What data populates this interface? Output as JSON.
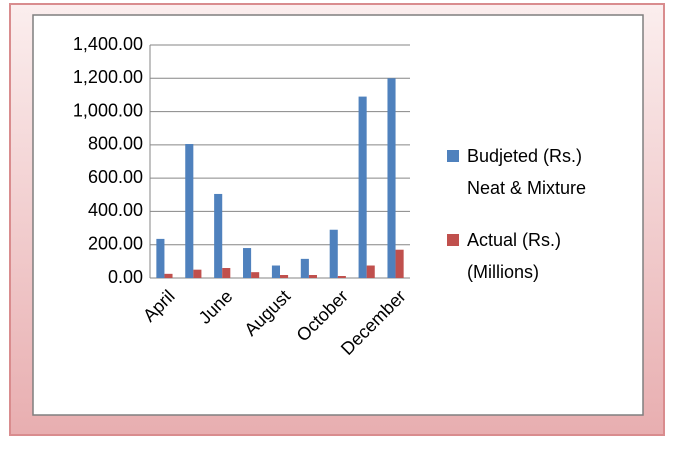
{
  "chart_data": {
    "type": "bar",
    "categories": [
      "April",
      null,
      "June",
      null,
      "August",
      null,
      "October",
      null,
      "December"
    ],
    "series": [
      {
        "name": "Budjeted (Rs.) Neat & Mixture",
        "color": "#4f81bd",
        "values": [
          235,
          805,
          505,
          180,
          75,
          115,
          290,
          1090,
          1200
        ]
      },
      {
        "name": "Actual (Rs.) (Millions)",
        "color": "#c0504d",
        "values": [
          25,
          50,
          60,
          35,
          18,
          18,
          12,
          75,
          170
        ]
      }
    ],
    "ylim": [
      0,
      1400
    ],
    "yticks": [
      {
        "value": 0,
        "label": "0.00"
      },
      {
        "value": 200,
        "label": "200.00"
      },
      {
        "value": 400,
        "label": "400.00"
      },
      {
        "value": 600,
        "label": "600.00"
      },
      {
        "value": 800,
        "label": "800.00"
      },
      {
        "value": 1000,
        "label": "1,000.00"
      },
      {
        "value": 1200,
        "label": "1,200.00"
      },
      {
        "value": 1400,
        "label": "1,400.00"
      }
    ],
    "grid": true,
    "legend": "right"
  }
}
